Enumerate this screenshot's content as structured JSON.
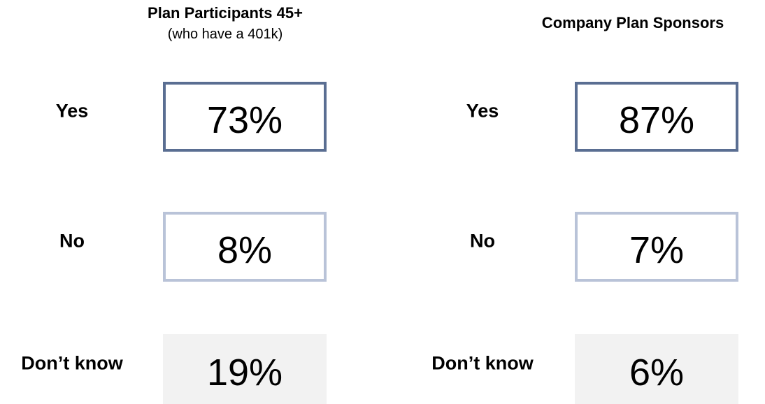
{
  "columns": [
    {
      "title": "Plan Participants 45+",
      "subtitle": "(who have a 401k)",
      "rows": [
        {
          "label": "Yes",
          "value": "73%"
        },
        {
          "label": "No",
          "value": "8%"
        },
        {
          "label": "Don’t know",
          "value": "19%"
        }
      ]
    },
    {
      "title": "Company Plan Sponsors",
      "rows": [
        {
          "label": "Yes",
          "value": "87%"
        },
        {
          "label": "No",
          "value": "7%"
        },
        {
          "label": "Don’t know",
          "value": "6%"
        }
      ]
    }
  ]
}
